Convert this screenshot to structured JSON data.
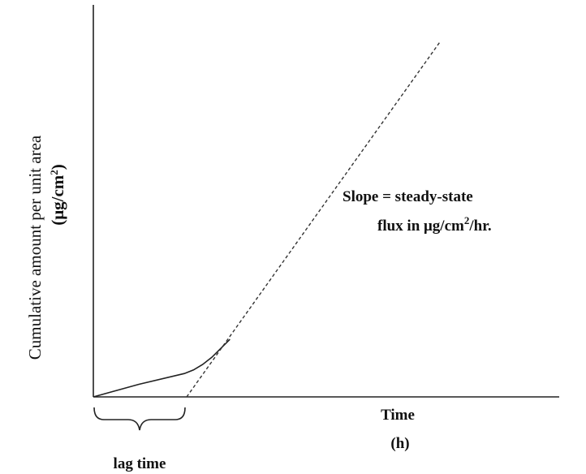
{
  "chart_data": {
    "type": "line",
    "title": "",
    "xlabel": "Time",
    "xlabel_unit": "(h)",
    "ylabel": "Cumulative amount per unit area",
    "ylabel_unit_base": "(μg/cm",
    "ylabel_unit_sup": "2",
    "ylabel_unit_tail": ")",
    "grid": false,
    "legend": "none",
    "xlim": [
      0,
      1
    ],
    "ylim": [
      0,
      1
    ],
    "series": [
      {
        "style": "solid",
        "x": [
          0.0,
          0.1,
          0.2,
          0.22,
          0.24,
          0.26,
          0.28,
          0.3
        ],
        "y": [
          0.0,
          0.035,
          0.065,
          0.075,
          0.09,
          0.11,
          0.135,
          0.16
        ]
      },
      {
        "style": "dashed",
        "x": [
          0.205,
          0.76
        ],
        "y": [
          0.0,
          0.985
        ]
      }
    ],
    "annotation": {
      "line1": "Slope = steady-state",
      "line2_pre": "flux in μg/cm",
      "line2_sup": "2",
      "line2_post": "/hr."
    },
    "lag_time": {
      "label": "lag time",
      "x_start": 0.0,
      "x_end": 0.205
    }
  }
}
